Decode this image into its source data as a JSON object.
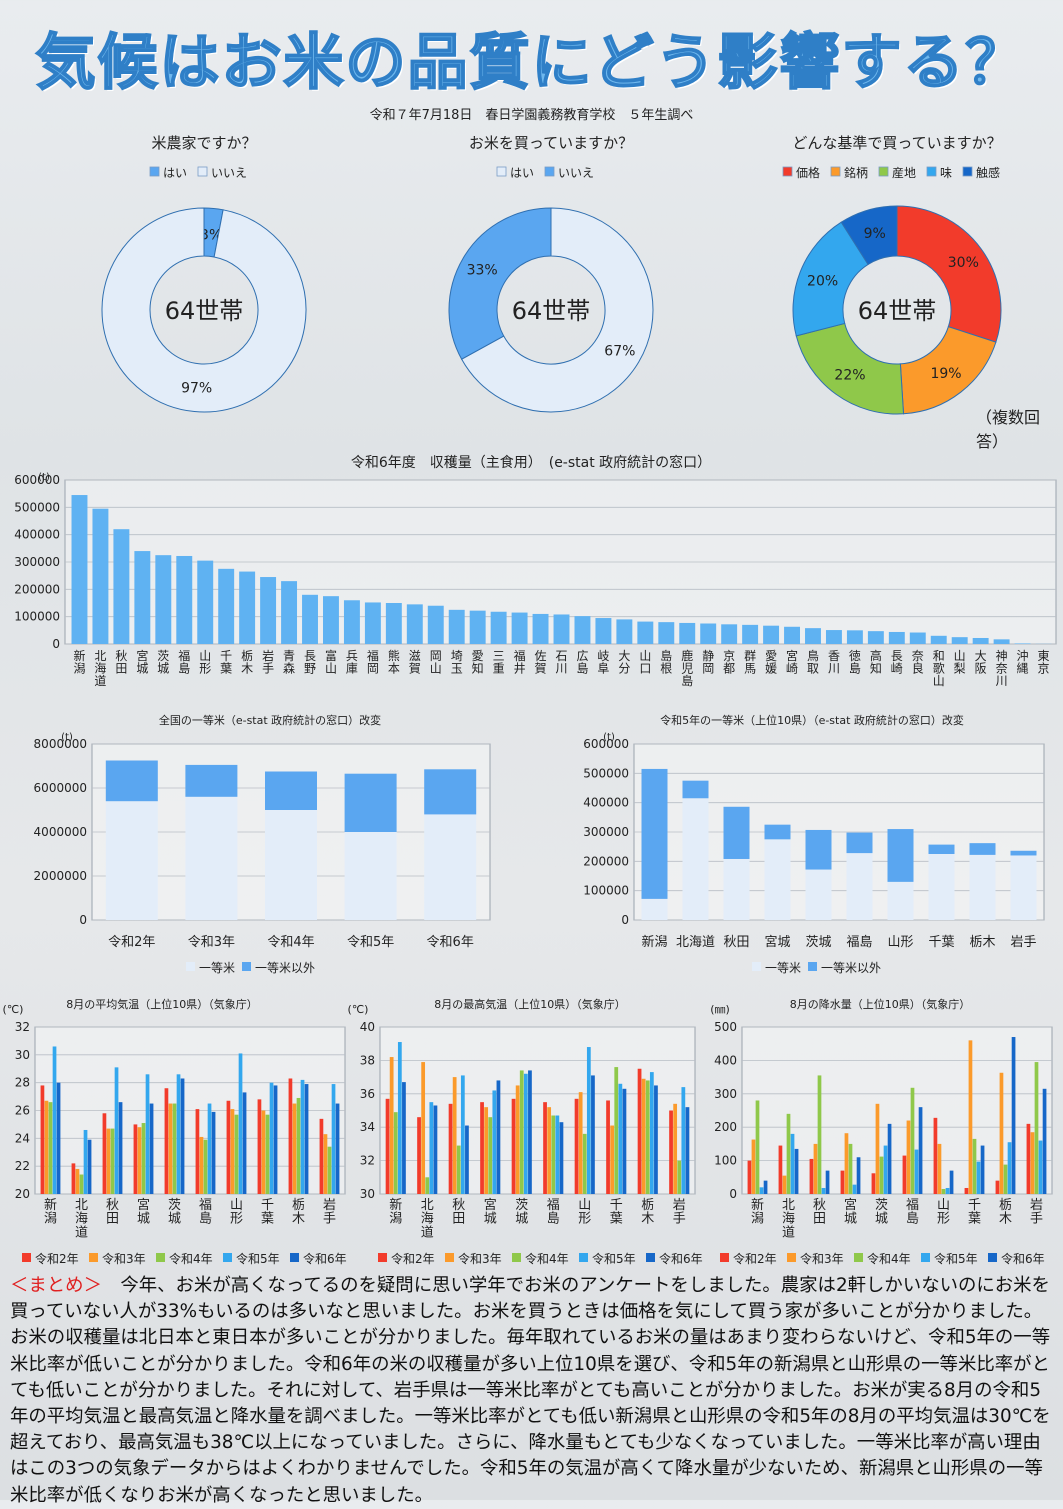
{
  "title": "気候はお米の品質にどう影響する？",
  "subtitle": "令和７年7月18日　春日学園義務教育学校　５年生調べ",
  "note": "（複数回答）",
  "center_label": "64世帯",
  "colors": {
    "light": "#e3edf9",
    "mid": "#5aa6f0",
    "s1": "#f23b2b",
    "s2": "#fb9a2b",
    "s3": "#8fc84a",
    "s4": "#33a7ee",
    "s5": "#1667c8"
  },
  "summary": {
    "head": "＜まとめ＞",
    "text": "　今年、お米が高くなってるのを疑問に思い学年でお米のアンケートをしました。農家は2軒しかいないのにお米を買っていない人が33%もいるのは多いなと思いました。お米を買うときは価格を気にして買う家が多いことが分かりました。お米の収穫量は北日本と東日本が多いことが分かりました。毎年取れているお米の量はあまり変わらないけど、令和5年の一等米比率が低いことが分かりました。令和6年の米の収穫量が多い上位10県を選び、令和5年の新潟県と山形県の一等米比率がとても低いことが分かりました。それに対して、岩手県は一等米比率がとても高いことが分かりました。お米が実る8月の令和5年の平均気温と最高気温と降水量を調べました。一等米比率がとても低い新潟県と山形県の令和5年の8月の平均気温は30℃を超えており、最高気温も38℃以上になっていました。さらに、降水量もとても少なくなっていました。一等米比率が高い理由はこの3つの気象データからはよくわかりませんでした。令和5年の気温が高くて降水量が少ないため、新潟県と山形県の一等米比率が低くなりお米が高くなったと思いました。"
  },
  "chart_data": [
    {
      "type": "pie",
      "title": "米農家ですか？",
      "labels": [
        "はい",
        "いいえ"
      ],
      "values": [
        3,
        97
      ],
      "value_labels": [
        "3%",
        "97%"
      ],
      "legend": "top"
    },
    {
      "type": "pie",
      "title": "お米を買っていますか？",
      "labels": [
        "はい",
        "いいえ"
      ],
      "values": [
        67,
        33
      ],
      "value_labels": [
        "67%",
        "33%"
      ],
      "legend": "top"
    },
    {
      "type": "pie",
      "title": "どんな基準で買っていますか？",
      "labels": [
        "価格",
        "銘柄",
        "産地",
        "味",
        "触感"
      ],
      "values": [
        30,
        19,
        22,
        20,
        9
      ],
      "value_labels": [
        "30%",
        "19%",
        "22%",
        "20%",
        "9%"
      ],
      "legend": "top"
    },
    {
      "type": "bar",
      "title": "令和6年度　収穫量（主食用）　(e-stat 政府統計の窓口）",
      "unit": "(t)",
      "ylim": [
        0,
        600000
      ],
      "yticks": [
        "0",
        "100000",
        "200000",
        "300000",
        "400000",
        "500000",
        "600000"
      ],
      "categories": [
        "新潟",
        "北海道",
        "秋田",
        "宮城",
        "茨城",
        "福島",
        "山形",
        "千葉",
        "栃木",
        "岩手",
        "青森",
        "長野",
        "富山",
        "兵庫",
        "福岡",
        "熊本",
        "滋賀",
        "岡山",
        "埼玉",
        "愛知",
        "三重",
        "福井",
        "佐賀",
        "石川",
        "広島",
        "岐阜",
        "大分",
        "山口",
        "島根",
        "鹿児島",
        "静岡",
        "京都",
        "群馬",
        "愛媛",
        "宮崎",
        "鳥取",
        "香川",
        "徳島",
        "高知",
        "長崎",
        "奈良",
        "和歌山",
        "山梨",
        "大阪",
        "神奈川",
        "沖縄",
        "東京"
      ],
      "values": [
        545000,
        495000,
        420000,
        340000,
        325000,
        322000,
        305000,
        275000,
        265000,
        245000,
        230000,
        180000,
        175000,
        160000,
        152000,
        150000,
        145000,
        140000,
        125000,
        122000,
        118000,
        115000,
        110000,
        108000,
        102000,
        95000,
        90000,
        82000,
        80000,
        77000,
        75000,
        72000,
        70000,
        67000,
        63000,
        58000,
        51000,
        50000,
        47000,
        44000,
        42000,
        30000,
        25000,
        22000,
        17000,
        2000,
        500
      ]
    },
    {
      "type": "bar",
      "title": "全国の一等米（e-stat 政府統計の窓口）改変",
      "unit": "(t)",
      "ylim": [
        0,
        8000000
      ],
      "yticks": [
        "0",
        "2000000",
        "4000000",
        "6000000",
        "8000000"
      ],
      "categories": [
        "令和2年",
        "令和3年",
        "令和4年",
        "令和5年",
        "令和6年"
      ],
      "series": [
        {
          "name": "一等米",
          "values": [
            5400000,
            5600000,
            5000000,
            4000000,
            4800000
          ]
        },
        {
          "name": "一等米以外",
          "values": [
            1850000,
            1450000,
            1750000,
            2650000,
            2050000
          ]
        }
      ],
      "legend": "bottom"
    },
    {
      "type": "bar",
      "title": "令和5年の一等米（上位10県）（e-stat 政府統計の窓口）改変",
      "unit": "(t)",
      "ylim": [
        0,
        600000
      ],
      "yticks": [
        "0",
        "100000",
        "200000",
        "300000",
        "400000",
        "500000",
        "600000"
      ],
      "categories": [
        "新潟",
        "北海道",
        "秋田",
        "宮城",
        "茨城",
        "福島",
        "山形",
        "千葉",
        "栃木",
        "岩手"
      ],
      "series": [
        {
          "name": "一等米",
          "values": [
            72000,
            415000,
            208000,
            275000,
            172000,
            228000,
            130000,
            225000,
            222000,
            220000
          ]
        },
        {
          "name": "一等米以外",
          "values": [
            443000,
            60000,
            178000,
            50000,
            135000,
            70000,
            180000,
            32000,
            40000,
            16000
          ]
        }
      ],
      "legend": "bottom"
    },
    {
      "type": "bar",
      "title": "8月の平均気温（上位10県）（気象庁）",
      "unit": "(℃)",
      "ylim": [
        20,
        32
      ],
      "yticks": [
        "20",
        "22",
        "24",
        "26",
        "28",
        "30",
        "32"
      ],
      "categories": [
        "新潟",
        "北海道",
        "秋田",
        "宮城",
        "茨城",
        "福島",
        "山形",
        "千葉",
        "栃木",
        "岩手"
      ],
      "series": [
        {
          "name": "令和2年",
          "values": [
            27.8,
            22.2,
            25.8,
            25.0,
            27.6,
            26.1,
            26.7,
            26.8,
            28.3,
            25.4
          ]
        },
        {
          "name": "令和3年",
          "values": [
            26.7,
            21.8,
            24.7,
            24.8,
            26.5,
            24.1,
            26.1,
            26.0,
            26.5,
            24.3
          ]
        },
        {
          "name": "令和4年",
          "values": [
            26.6,
            21.4,
            24.7,
            25.1,
            26.5,
            23.9,
            25.7,
            25.7,
            26.9,
            23.4
          ]
        },
        {
          "name": "令和5年",
          "values": [
            30.6,
            24.6,
            29.1,
            28.6,
            28.6,
            26.5,
            30.1,
            28.0,
            28.2,
            27.9
          ]
        },
        {
          "name": "令和6年",
          "values": [
            28.0,
            23.9,
            26.6,
            26.5,
            28.3,
            25.9,
            27.3,
            27.8,
            27.9,
            26.5
          ]
        }
      ],
      "legend": "bottom"
    },
    {
      "type": "bar",
      "title": "8月の最高気温（上位10県）（気象庁）",
      "unit": "(℃)",
      "ylim": [
        30,
        40
      ],
      "yticks": [
        "30",
        "32",
        "34",
        "36",
        "38",
        "40"
      ],
      "categories": [
        "新潟",
        "北海道",
        "秋田",
        "宮城",
        "茨城",
        "福島",
        "山形",
        "千葉",
        "栃木",
        "岩手"
      ],
      "series": [
        {
          "name": "令和2年",
          "values": [
            35.7,
            34.6,
            35.4,
            35.5,
            35.7,
            35.5,
            35.7,
            35.6,
            37.5,
            35.0
          ]
        },
        {
          "name": "令和3年",
          "values": [
            38.2,
            37.9,
            37.0,
            35.2,
            36.5,
            35.2,
            36.1,
            34.1,
            36.9,
            35.4
          ]
        },
        {
          "name": "令和4年",
          "values": [
            34.9,
            31.0,
            32.9,
            34.6,
            37.4,
            34.7,
            33.6,
            37.6,
            36.8,
            32.0
          ]
        },
        {
          "name": "令和5年",
          "values": [
            39.1,
            35.5,
            37.1,
            36.2,
            37.2,
            34.7,
            38.8,
            36.6,
            37.3,
            36.4
          ]
        },
        {
          "name": "令和6年",
          "values": [
            36.7,
            35.3,
            34.1,
            36.8,
            37.4,
            34.3,
            37.1,
            36.3,
            36.5,
            35.2
          ]
        }
      ],
      "legend": "bottom"
    },
    {
      "type": "bar",
      "title": "8月の降水量（上位10県）（気象庁）",
      "unit": "(㎜)",
      "ylim": [
        0,
        500
      ],
      "yticks": [
        "0",
        "100",
        "200",
        "300",
        "400",
        "500"
      ],
      "categories": [
        "新潟",
        "北海道",
        "秋田",
        "宮城",
        "茨城",
        "福島",
        "山形",
        "千葉",
        "栃木",
        "岩手"
      ],
      "series": [
        {
          "name": "令和2年",
          "values": [
            100,
            145,
            105,
            70,
            62,
            115,
            228,
            18,
            40,
            210
          ]
        },
        {
          "name": "令和3年",
          "values": [
            163,
            55,
            150,
            182,
            270,
            220,
            150,
            460,
            363,
            185
          ]
        },
        {
          "name": "令和4年",
          "values": [
            280,
            240,
            355,
            150,
            112,
            318,
            15,
            165,
            88,
            395
          ]
        },
        {
          "name": "令和5年",
          "values": [
            20,
            180,
            18,
            28,
            145,
            133,
            18,
            97,
            155,
            160
          ]
        },
        {
          "name": "令和6年",
          "values": [
            40,
            135,
            70,
            110,
            210,
            260,
            70,
            145,
            470,
            315
          ]
        }
      ],
      "legend": "bottom"
    }
  ]
}
